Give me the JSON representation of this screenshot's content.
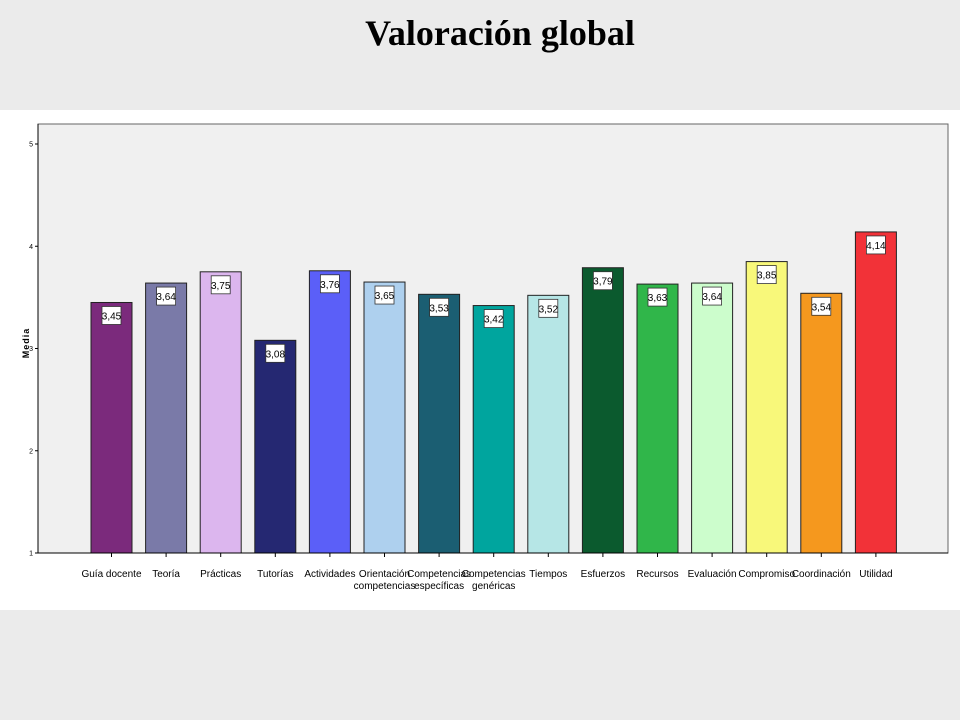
{
  "slide": {
    "title": "Valoración global"
  },
  "chart_data": {
    "type": "bar",
    "title": "",
    "xlabel": "",
    "ylabel": "Media",
    "ylim": [
      1,
      5
    ],
    "yticks": [
      1,
      2,
      3,
      4,
      5
    ],
    "grid": false,
    "categories": [
      [
        "Guía docente"
      ],
      [
        "Teoría"
      ],
      [
        "Prácticas"
      ],
      [
        "Tutorías"
      ],
      [
        "Actividades"
      ],
      [
        "Orientación",
        "competencias"
      ],
      [
        "Competencias",
        "específicas"
      ],
      [
        "Competencias",
        "genéricas"
      ],
      [
        "Tiempos"
      ],
      [
        "Esfuerzos"
      ],
      [
        "Recursos"
      ],
      [
        "Evaluación"
      ],
      [
        "Compromiso"
      ],
      [
        "Coordinación"
      ],
      [
        "Utilidad"
      ]
    ],
    "values": [
      3.45,
      3.64,
      3.75,
      3.08,
      3.76,
      3.65,
      3.53,
      3.42,
      3.52,
      3.79,
      3.63,
      3.64,
      3.85,
      3.54,
      4.14
    ],
    "value_labels": [
      "3,45",
      "3,64",
      "3,75",
      "3,08",
      "3,76",
      "3,65",
      "3,53",
      "3,42",
      "3,52",
      "3,79",
      "3,63",
      "3,64",
      "3,85",
      "3,54",
      "4,14"
    ],
    "colors": [
      "#7b2a7c",
      "#7a7aa8",
      "#dcb6ee",
      "#252872",
      "#5b5ff8",
      "#aed0ee",
      "#1b5e72",
      "#00a59e",
      "#b6e6e6",
      "#0b5a2e",
      "#30b64a",
      "#ccfdcc",
      "#f8f87a",
      "#f5981e",
      "#f23238"
    ],
    "plot_background": "#f0f0f0"
  }
}
